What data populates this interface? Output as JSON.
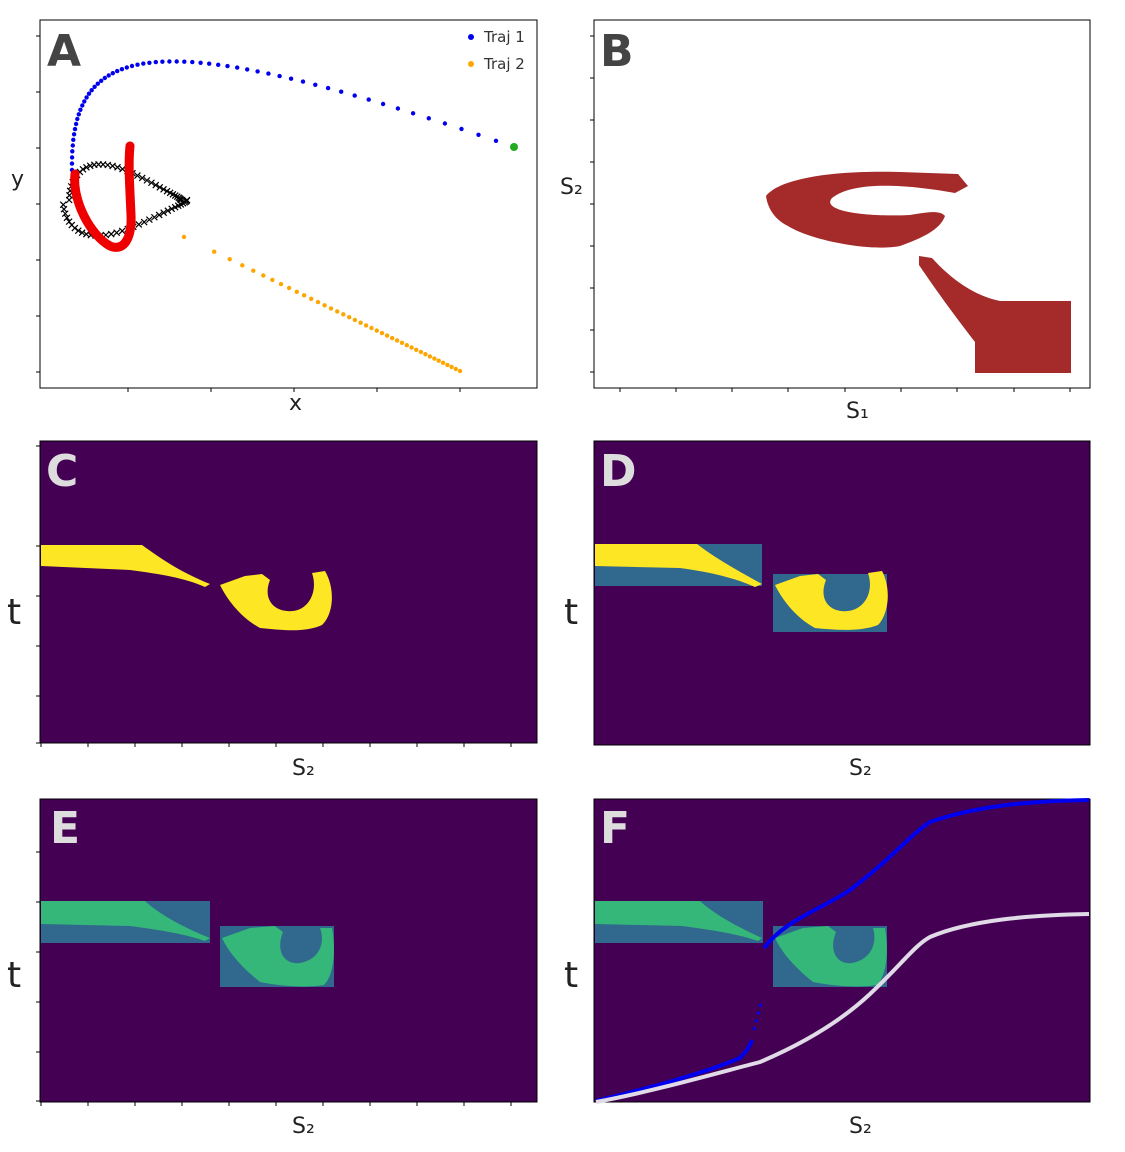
{
  "colors": {
    "traj1": "#0000ee",
    "traj2": "#ffa500",
    "endpoint": "#22aa22",
    "red_curve": "#ee0000",
    "cross": "#000000",
    "region_b": "#a52a2a",
    "bg_dark": "#440154",
    "yellow": "#fde725",
    "teal": "#31688e",
    "green": "#35b779",
    "white_curve": "#e0dbe6",
    "panel_letter_dark": "#444444",
    "panel_letter_light": "#dddddd"
  },
  "chart_data": [
    {
      "panel": "A",
      "type": "scatter",
      "xlabel": "x",
      "ylabel": "y",
      "legend": {
        "placement": "top-right",
        "entries": [
          "Traj 1",
          "Traj 2"
        ]
      },
      "series": [
        {
          "name": "Traj 1",
          "color_key": "traj1",
          "marker": "dot"
        },
        {
          "name": "Traj 2",
          "color_key": "traj2",
          "marker": "dot"
        }
      ]
    },
    {
      "panel": "B",
      "type": "area",
      "xlabel": "S₁",
      "ylabel": "S₂"
    },
    {
      "panel": "C",
      "type": "heatmap",
      "xlabel": "S₂",
      "ylabel": "t"
    },
    {
      "panel": "D",
      "type": "heatmap",
      "xlabel": "S₂",
      "ylabel": "t"
    },
    {
      "panel": "E",
      "type": "heatmap",
      "xlabel": "S₂",
      "ylabel": "t"
    },
    {
      "panel": "F",
      "type": "heatmap",
      "xlabel": "S₂",
      "ylabel": "t"
    }
  ]
}
